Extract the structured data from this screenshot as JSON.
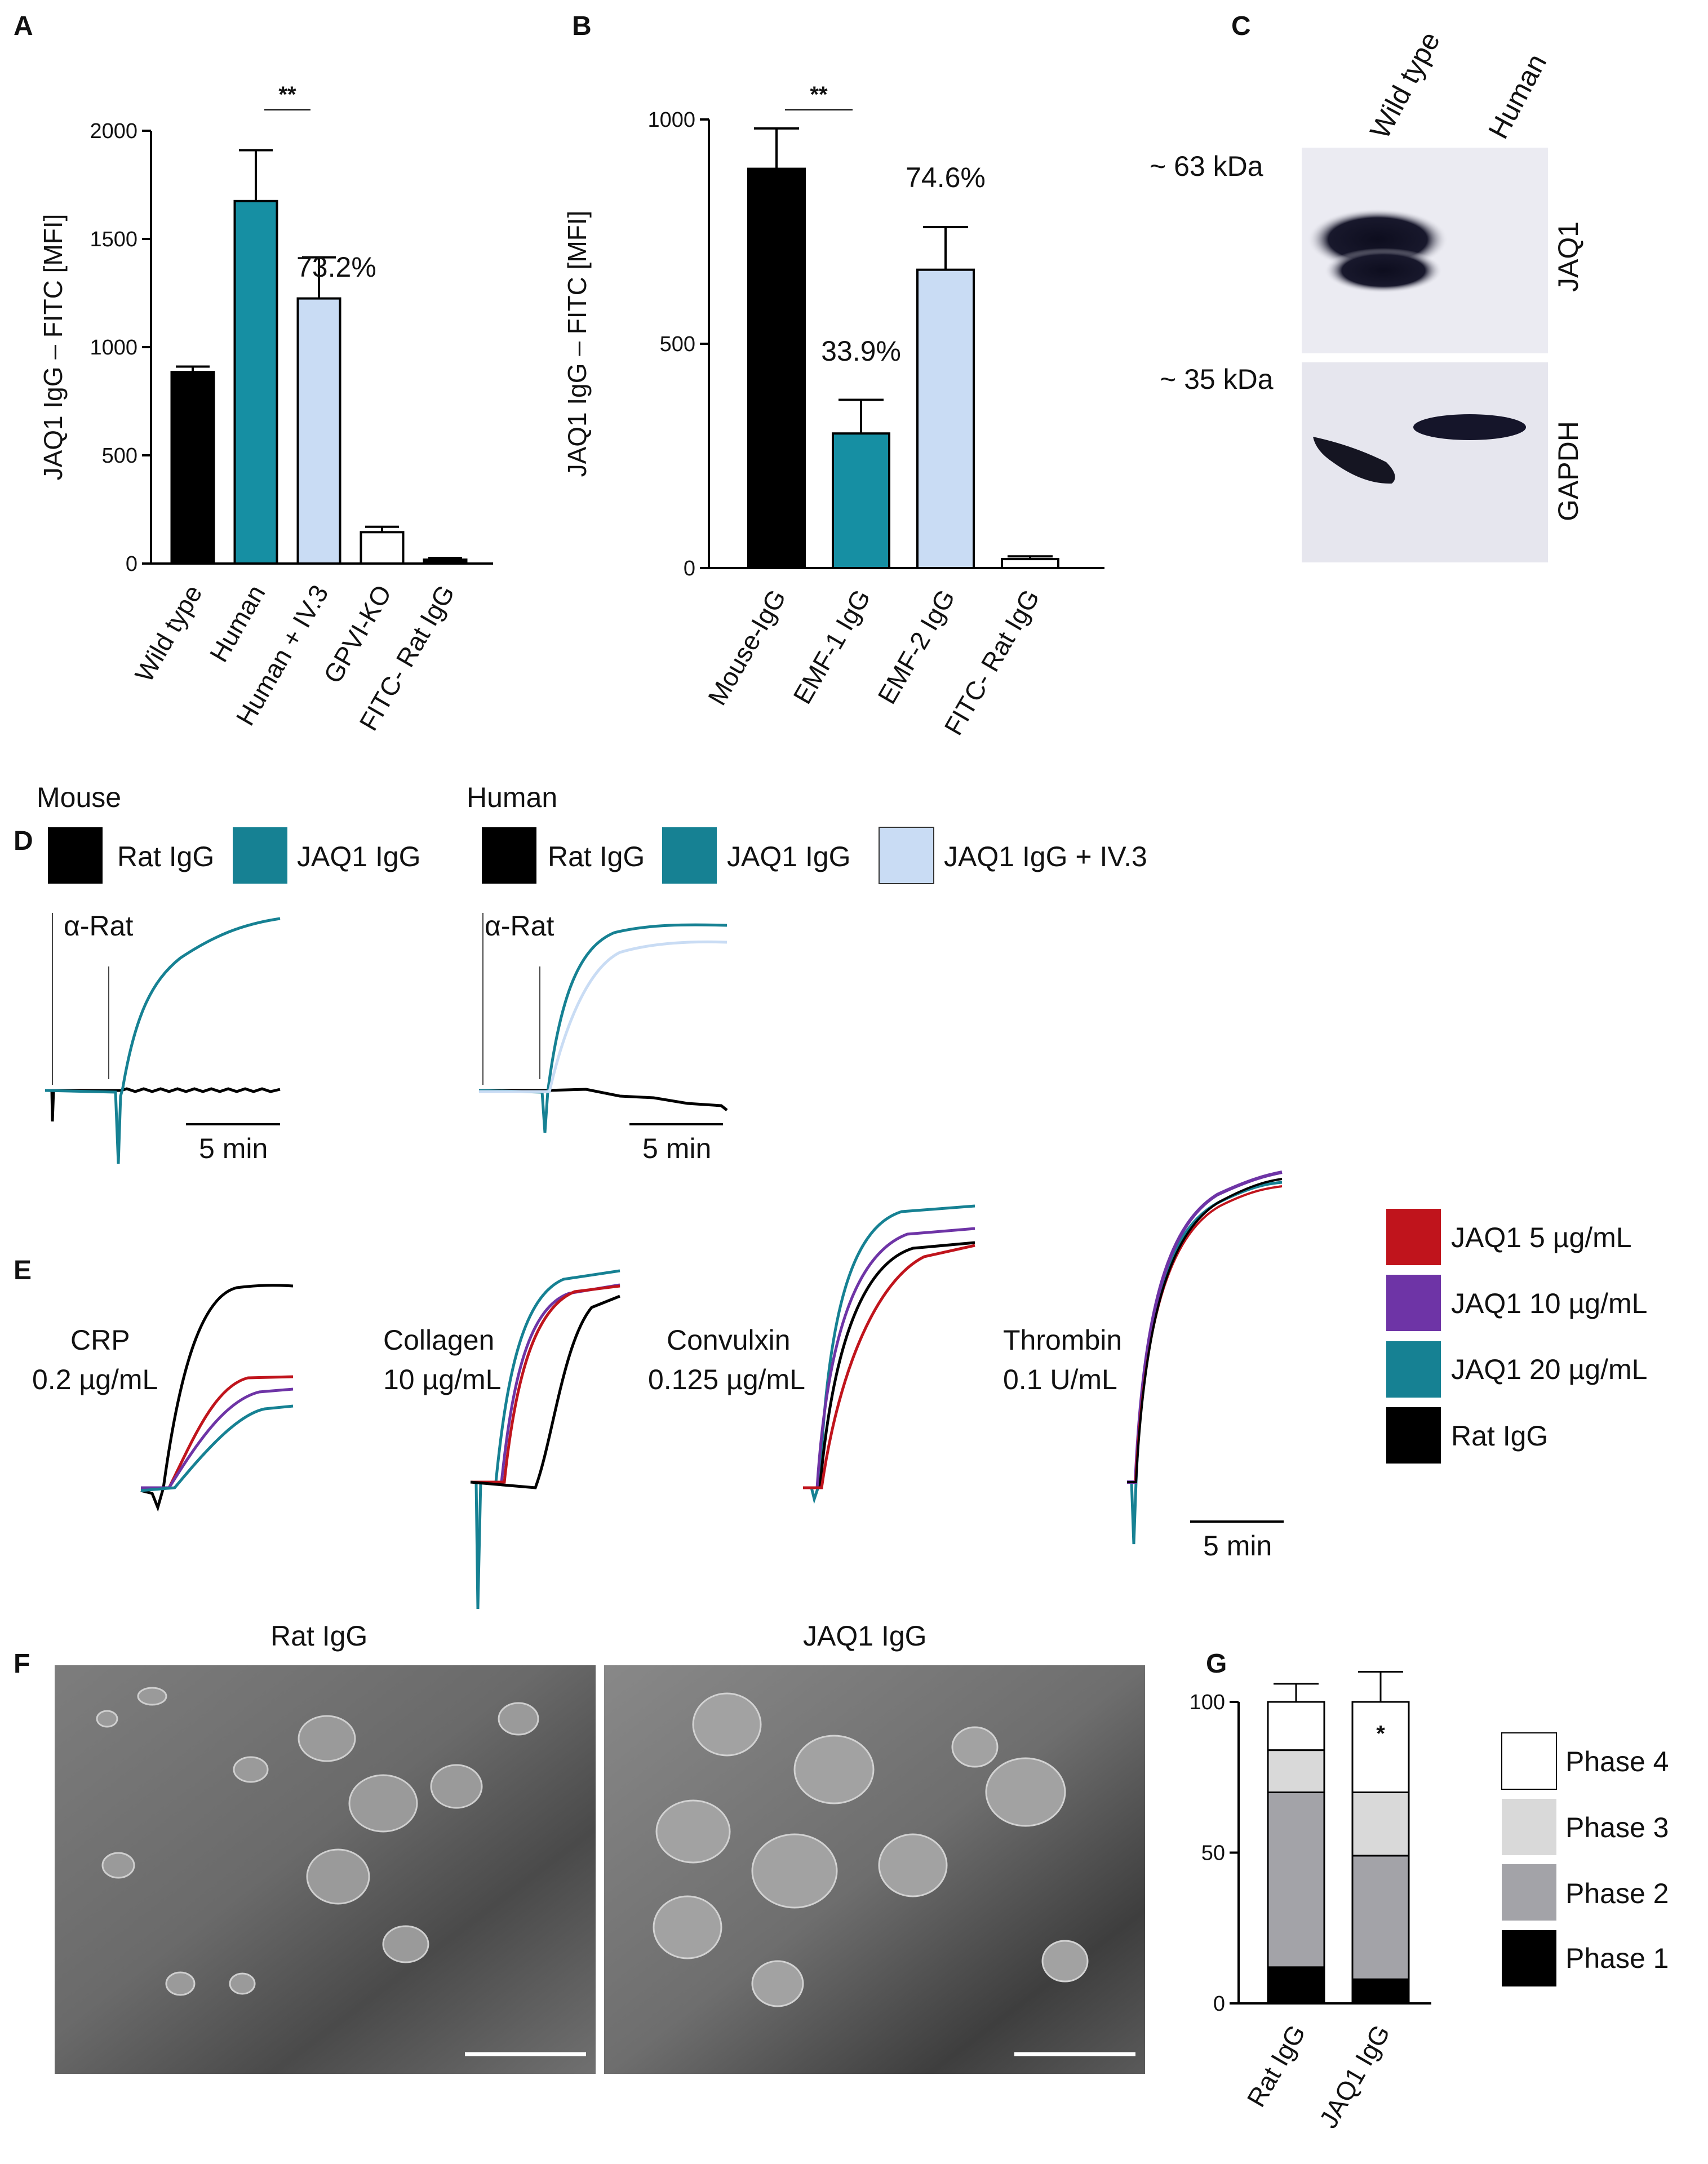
{
  "panels": {
    "A": "A",
    "B": "B",
    "C": "C",
    "D": "D",
    "E": "E",
    "F": "F",
    "G": "G"
  },
  "chart_data": [
    {
      "panel": "A",
      "type": "bar",
      "ylabel": "JAQ1 IgG – FITC [MFI]",
      "ylim": [
        0,
        2000
      ],
      "yticks": [
        0,
        500,
        1000,
        1500,
        2000
      ],
      "categories": [
        "Wild type",
        "Human",
        "Human + IV.3",
        "GPVI-KO",
        "FITC- Rat IgG"
      ],
      "values": [
        885,
        1675,
        1225,
        145,
        18
      ],
      "errors": [
        25,
        235,
        190,
        25,
        8
      ],
      "colors": [
        "#000000",
        "#168fa3",
        "#c9dcf4",
        "#ffffff",
        "#000000"
      ],
      "annotations": [
        {
          "text": "73.2%",
          "near": "Human + IV.3"
        }
      ],
      "significance": [
        {
          "text": "**",
          "between": [
            "Human",
            "Human + IV.3"
          ]
        }
      ]
    },
    {
      "panel": "B",
      "type": "bar",
      "ylabel": "JAQ1 IgG – FITC [MFI]",
      "ylim": [
        0,
        1000
      ],
      "yticks": [
        0,
        500,
        1000
      ],
      "categories": [
        "Mouse-IgG",
        "EMF-1 IgG",
        "EMF-2 IgG",
        "FITC- Rat IgG"
      ],
      "values": [
        890,
        300,
        665,
        20
      ],
      "errors": [
        90,
        75,
        95,
        6
      ],
      "colors": [
        "#000000",
        "#168fa3",
        "#c9dcf4",
        "#ffffff"
      ],
      "annotations": [
        {
          "text": "33.9%",
          "near": "EMF-1 IgG"
        },
        {
          "text": "74.6%",
          "near": "EMF-2 IgG"
        }
      ],
      "significance": [
        {
          "text": "**",
          "between": [
            "Mouse-IgG",
            "EMF-1 IgG"
          ]
        }
      ]
    },
    {
      "panel": "G",
      "type": "bar",
      "stacked": true,
      "ylim": [
        0,
        100
      ],
      "yticks": [
        0,
        50,
        100
      ],
      "categories": [
        "Rat IgG",
        "JAQ1 IgG"
      ],
      "series": [
        {
          "name": "Phase 1",
          "values": [
            12,
            8
          ],
          "errors": [
            7,
            6
          ],
          "color": "#000000"
        },
        {
          "name": "Phase 2",
          "values": [
            58,
            41
          ],
          "errors": [
            9,
            10
          ],
          "color": "#a3a3a8"
        },
        {
          "name": "Phase 3",
          "values": [
            14,
            21
          ],
          "errors": [
            2,
            10
          ],
          "color": "#d9d9d9"
        },
        {
          "name": "Phase 4",
          "values": [
            16,
            30
          ],
          "errors": [
            6,
            10
          ],
          "color": "#ffffff"
        }
      ],
      "annotations": [
        {
          "text": "*",
          "near": "JAQ1 IgG"
        }
      ]
    }
  ],
  "blot": {
    "lanes": [
      "Wild type",
      "Human"
    ],
    "markers": [
      "~ 63 kDa",
      "~ 35 kDa"
    ],
    "proteins": [
      "JAQ1",
      "GAPDH"
    ]
  },
  "panel_D": {
    "mouse_title": "Mouse",
    "human_title": "Human",
    "mouse_legend": [
      {
        "label": "Rat IgG",
        "color": "#000000"
      },
      {
        "label": "JAQ1 IgG",
        "color": "#168193"
      }
    ],
    "human_legend": [
      {
        "label": "Rat IgG",
        "color": "#000000"
      },
      {
        "label": "JAQ1 IgG",
        "color": "#168193"
      },
      {
        "label": "JAQ1 IgG + IV.3",
        "color": "#c9dcf4"
      }
    ],
    "agonist": "α-Rat",
    "scale": "5 min"
  },
  "panel_E": {
    "traces": [
      {
        "line1": "CRP",
        "line2": "0.2 µg/mL"
      },
      {
        "line1": "Collagen",
        "line2": "10 µg/mL"
      },
      {
        "line1": "Convulxin",
        "line2": "0.125 µg/mL"
      },
      {
        "line1": "Thrombin",
        "line2": "0.1 U/mL"
      }
    ],
    "legend": [
      {
        "label": "JAQ1 5 µg/mL",
        "color": "#c0141c"
      },
      {
        "label": "JAQ1 10 µg/mL",
        "color": "#6e34a6"
      },
      {
        "label": "JAQ1 20 µg/mL",
        "color": "#168193"
      },
      {
        "label": "Rat IgG",
        "color": "#000000"
      }
    ],
    "scale": "5 min"
  },
  "panel_F": {
    "left_title": "Rat IgG",
    "right_title": "JAQ1 IgG"
  }
}
